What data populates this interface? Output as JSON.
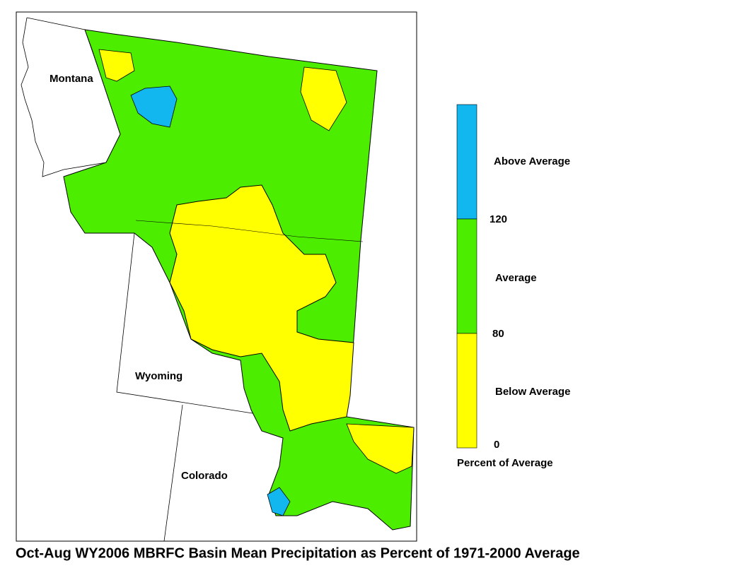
{
  "map": {
    "title": "Oct-Aug WY2006 MBRFC Basin Mean Precipitation as Percent of 1971-2000 Average",
    "states": [
      "Montana",
      "Wyoming",
      "Colorado"
    ],
    "legend": {
      "title": "Percent of Average",
      "classes": [
        {
          "name": "Above Average",
          "color": "#12b7ef"
        },
        {
          "name": "Average",
          "color": "#4ded00"
        },
        {
          "name": "Below Average",
          "color": "#ffff00"
        }
      ],
      "breaks": [
        120,
        80,
        0
      ]
    }
  }
}
